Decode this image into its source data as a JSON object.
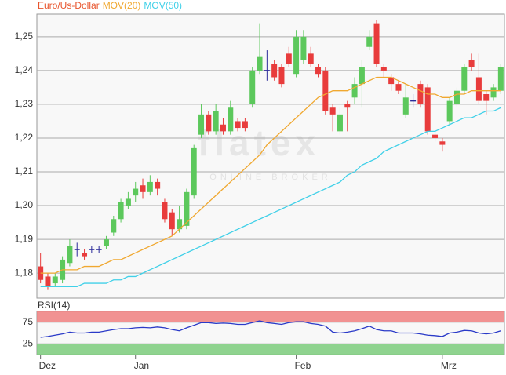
{
  "chart_data": [
    {
      "type": "candlestick",
      "title": "Euro/Us-Dollar",
      "title_color": "#e8542c",
      "watermark": {
        "title": "flatex",
        "subtitle": "ONLINE BROKER"
      },
      "categories": [
        "Dez",
        null,
        null,
        null,
        null,
        null,
        null,
        null,
        null,
        null,
        null,
        null,
        null,
        "Jan",
        null,
        null,
        null,
        null,
        null,
        null,
        null,
        null,
        null,
        null,
        null,
        null,
        null,
        null,
        null,
        null,
        null,
        null,
        null,
        null,
        null,
        "Feb",
        null,
        null,
        null,
        null,
        null,
        null,
        null,
        null,
        null,
        null,
        null,
        null,
        null,
        null,
        null,
        null,
        null,
        null,
        null,
        "Mrz",
        null,
        null,
        null,
        null,
        null,
        null,
        null,
        null
      ],
      "open": [
        1.182,
        1.179,
        1.177,
        1.178,
        1.183,
        1.187,
        1.186,
        1.187,
        1.187,
        1.188,
        1.192,
        1.196,
        1.2,
        1.203,
        1.206,
        1.204,
        1.207,
        1.201,
        1.198,
        1.193,
        1.194,
        1.203,
        1.221,
        1.227,
        1.222,
        1.224,
        1.222,
        1.225,
        1.225,
        1.23,
        1.24,
        1.24,
        1.242,
        1.241,
        1.245,
        1.239,
        1.243,
        1.245,
        1.241,
        1.24,
        1.229,
        1.222,
        1.23,
        1.232,
        1.236,
        1.247,
        1.254,
        1.241,
        1.238,
        1.236,
        1.227,
        1.231,
        1.236,
        1.235,
        1.221,
        1.219,
        1.225,
        1.23,
        1.234,
        1.243,
        1.238,
        1.233,
        1.232,
        1.234
      ],
      "high": [
        1.186,
        1.18,
        1.18,
        1.185,
        1.19,
        1.189,
        1.187,
        1.188,
        1.188,
        1.191,
        1.197,
        1.202,
        1.204,
        1.207,
        1.208,
        1.209,
        1.208,
        1.202,
        1.199,
        1.2,
        1.205,
        1.218,
        1.23,
        1.228,
        1.23,
        1.226,
        1.231,
        1.226,
        1.226,
        1.241,
        1.254,
        1.246,
        1.243,
        1.242,
        1.247,
        1.252,
        1.252,
        1.247,
        1.242,
        1.241,
        1.23,
        1.229,
        1.231,
        1.238,
        1.243,
        1.252,
        1.255,
        1.242,
        1.239,
        1.237,
        1.236,
        1.233,
        1.237,
        1.236,
        1.222,
        1.22,
        1.232,
        1.235,
        1.242,
        1.245,
        1.245,
        1.234,
        1.236,
        1.242
      ],
      "low": [
        1.177,
        1.175,
        1.176,
        1.177,
        1.182,
        1.185,
        1.184,
        1.186,
        1.186,
        1.187,
        1.191,
        1.195,
        1.199,
        1.201,
        1.202,
        1.203,
        1.203,
        1.195,
        1.191,
        1.192,
        1.193,
        1.202,
        1.22,
        1.221,
        1.221,
        1.221,
        1.221,
        1.222,
        1.222,
        1.229,
        1.239,
        1.237,
        1.237,
        1.235,
        1.241,
        1.238,
        1.242,
        1.241,
        1.238,
        1.227,
        1.222,
        1.221,
        1.222,
        1.23,
        1.229,
        1.246,
        1.241,
        1.238,
        1.234,
        1.233,
        1.226,
        1.229,
        1.229,
        1.221,
        1.219,
        1.216,
        1.224,
        1.229,
        1.233,
        1.24,
        1.23,
        1.227,
        1.231,
        1.233
      ],
      "close": [
        1.178,
        1.176,
        1.179,
        1.184,
        1.188,
        1.187,
        1.185,
        1.187,
        1.187,
        1.19,
        1.196,
        1.201,
        1.202,
        1.205,
        1.204,
        1.207,
        1.205,
        1.196,
        1.193,
        1.196,
        1.204,
        1.217,
        1.227,
        1.222,
        1.228,
        1.222,
        1.229,
        1.223,
        1.223,
        1.24,
        1.244,
        1.24,
        1.238,
        1.236,
        1.242,
        1.25,
        1.25,
        1.242,
        1.239,
        1.228,
        1.227,
        1.227,
        1.229,
        1.236,
        1.241,
        1.25,
        1.242,
        1.24,
        1.236,
        1.234,
        1.232,
        1.231,
        1.23,
        1.222,
        1.22,
        1.218,
        1.231,
        1.234,
        1.241,
        1.241,
        1.231,
        1.231,
        1.235,
        1.241
      ],
      "up_color": "#5cc85c",
      "down_color": "#e83c3c",
      "doji_color": "#2a2a9a",
      "series": [
        {
          "name": "MOV(20)",
          "color": "#f0a830",
          "values": [
            1.18,
            1.18,
            1.18,
            1.181,
            1.181,
            1.181,
            1.182,
            1.182,
            1.182,
            1.183,
            1.184,
            1.184,
            1.185,
            1.186,
            1.187,
            1.188,
            1.189,
            1.19,
            1.191,
            1.193,
            1.195,
            1.197,
            1.199,
            1.201,
            1.203,
            1.205,
            1.207,
            1.209,
            1.211,
            1.213,
            1.215,
            1.218,
            1.22,
            1.222,
            1.224,
            1.226,
            1.228,
            1.23,
            1.232,
            1.233,
            1.234,
            1.234,
            1.234,
            1.235,
            1.236,
            1.237,
            1.238,
            1.238,
            1.238,
            1.237,
            1.236,
            1.235,
            1.234,
            1.233,
            1.233,
            1.232,
            1.232,
            1.233,
            1.233,
            1.234,
            1.234,
            1.234,
            1.234,
            1.234
          ]
        },
        {
          "name": "MOV(50)",
          "color": "#40d0e8",
          "values": [
            1.176,
            1.176,
            1.176,
            1.176,
            1.176,
            1.176,
            1.177,
            1.177,
            1.177,
            1.177,
            1.178,
            1.178,
            1.179,
            1.179,
            1.18,
            1.181,
            1.182,
            1.183,
            1.184,
            1.185,
            1.186,
            1.187,
            1.188,
            1.189,
            1.19,
            1.191,
            1.192,
            1.193,
            1.194,
            1.195,
            1.196,
            1.197,
            1.198,
            1.199,
            1.2,
            1.201,
            1.202,
            1.203,
            1.204,
            1.205,
            1.206,
            1.207,
            1.209,
            1.21,
            1.212,
            1.213,
            1.214,
            1.216,
            1.217,
            1.218,
            1.219,
            1.22,
            1.221,
            1.222,
            1.222,
            1.223,
            1.224,
            1.225,
            1.226,
            1.226,
            1.227,
            1.228,
            1.228,
            1.229
          ]
        }
      ],
      "ylim": [
        1.1726,
        1.2567
      ],
      "yticks": [
        {
          "value": 1.18,
          "label": "1,18"
        },
        {
          "value": 1.19,
          "label": "1,19"
        },
        {
          "value": 1.2,
          "label": "1,20"
        },
        {
          "value": 1.21,
          "label": "1,21"
        },
        {
          "value": 1.22,
          "label": "1,22"
        },
        {
          "value": 1.23,
          "label": "1,23"
        },
        {
          "value": 1.24,
          "label": "1,24"
        },
        {
          "value": 1.25,
          "label": "1,25"
        }
      ],
      "grid": true
    },
    {
      "type": "line",
      "title": "RSI(14)",
      "color": "#2a3ac8",
      "values": [
        40,
        42,
        45,
        48,
        52,
        50,
        50,
        52,
        52,
        55,
        58,
        60,
        60,
        62,
        63,
        62,
        64,
        62,
        58,
        55,
        62,
        68,
        74,
        74,
        72,
        73,
        72,
        70,
        70,
        74,
        78,
        74,
        72,
        70,
        74,
        76,
        76,
        72,
        70,
        66,
        52,
        50,
        52,
        55,
        60,
        66,
        58,
        55,
        55,
        50,
        50,
        50,
        48,
        45,
        44,
        42,
        50,
        52,
        56,
        55,
        50,
        48,
        50,
        55
      ],
      "ylim": [
        0,
        100
      ],
      "yticks": [
        25,
        75
      ],
      "bands": [
        {
          "from": 75,
          "to": 100,
          "color": "#f08080"
        },
        {
          "from": 0,
          "to": 25,
          "color": "#7ccc7c"
        }
      ],
      "grid": true
    }
  ]
}
